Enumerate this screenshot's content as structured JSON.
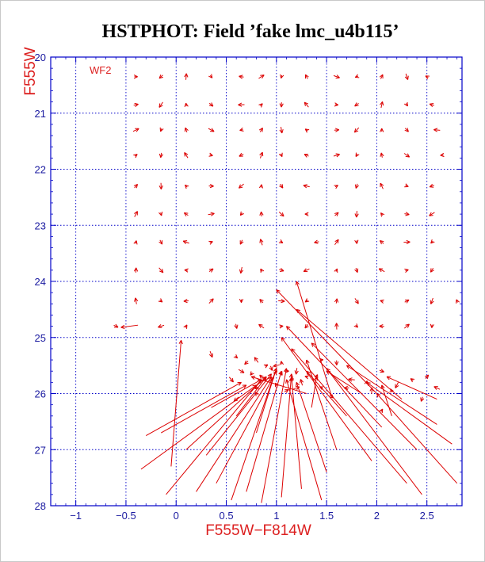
{
  "colors": {
    "frame": "#0000c8",
    "grid": "#0000c8",
    "ticks": "#1a1aa0",
    "vectors": "#dc0000",
    "labels": "#dc2020",
    "title": "#000000"
  },
  "chart_data": {
    "type": "vector-field",
    "title": "HSTPHOT: Field ’fake lmc_u4b115’",
    "xlabel": "F555W−F814W",
    "ylabel": "F555W",
    "field_label": "WF2",
    "xlim": [
      -1.25,
      2.85
    ],
    "ylim": [
      28,
      20
    ],
    "y_inverted": true,
    "grid": true,
    "x_ticks": [
      -1,
      -0.5,
      0,
      0.5,
      1,
      1.5,
      2,
      2.5
    ],
    "x_tick_labels": [
      "−1",
      "−0.5",
      "0",
      "0.5",
      "1",
      "1.5",
      "2",
      "2.5"
    ],
    "y_ticks": [
      20,
      21,
      22,
      23,
      24,
      25,
      26,
      27,
      28
    ],
    "y_tick_labels": [
      "20",
      "21",
      "22",
      "23",
      "24",
      "25",
      "26",
      "27",
      "28"
    ],
    "vector_rows": [
      {
        "y": 20.35,
        "x": [
          -0.4,
          -0.15,
          0.1,
          0.35,
          0.65,
          0.85,
          1.05,
          1.3,
          1.6,
          1.8,
          2.05,
          2.3,
          2.5
        ]
      },
      {
        "y": 20.85,
        "x": [
          -0.4,
          -0.15,
          0.1,
          0.35,
          0.65,
          0.85,
          1.05,
          1.3,
          1.6,
          1.8,
          2.05,
          2.3,
          2.55
        ]
      },
      {
        "y": 21.3,
        "x": [
          -0.4,
          -0.15,
          0.1,
          0.35,
          0.65,
          0.85,
          1.05,
          1.3,
          1.6,
          1.8,
          2.05,
          2.3,
          2.6
        ]
      },
      {
        "y": 21.75,
        "x": [
          -0.4,
          -0.15,
          0.1,
          0.35,
          0.65,
          0.85,
          1.05,
          1.3,
          1.6,
          1.8,
          2.05,
          2.3,
          2.65
        ]
      },
      {
        "y": 22.3,
        "x": [
          -0.4,
          -0.15,
          0.1,
          0.35,
          0.65,
          0.85,
          1.05,
          1.3,
          1.6,
          1.8,
          2.05,
          2.3,
          2.55
        ]
      },
      {
        "y": 22.8,
        "x": [
          -0.4,
          -0.15,
          0.1,
          0.35,
          0.65,
          0.85,
          1.05,
          1.3,
          1.6,
          1.8,
          2.05,
          2.3,
          2.55
        ]
      },
      {
        "y": 23.3,
        "x": [
          -0.4,
          -0.15,
          0.1,
          0.35,
          0.65,
          0.85,
          1.05,
          1.4,
          1.6,
          1.8,
          2.05,
          2.3,
          2.55
        ]
      },
      {
        "y": 23.8,
        "x": [
          -0.4,
          -0.15,
          0.1,
          0.35,
          0.65,
          0.85,
          1.05,
          1.3,
          1.6,
          1.8,
          2.05,
          2.3,
          2.55
        ]
      },
      {
        "y": 24.35,
        "x": [
          -0.4,
          -0.15,
          0.1,
          0.35,
          0.65,
          0.85,
          1.05,
          1.3,
          1.6,
          1.8,
          2.05,
          2.3,
          2.55,
          2.8
        ]
      },
      {
        "y": 24.8,
        "x": [
          -0.6,
          -0.15,
          0.1,
          0.6,
          0.85,
          1.05,
          1.3,
          1.6,
          1.8,
          2.05,
          2.3,
          2.55
        ]
      }
    ],
    "long_vectors": [
      {
        "x0": -0.05,
        "y0": 27.3,
        "x1": 0.05,
        "y1": 25.05
      },
      {
        "x0": -0.3,
        "y0": 26.75,
        "x1": 0.65,
        "y1": 25.8
      },
      {
        "x0": -0.15,
        "y0": 26.7,
        "x1": 0.7,
        "y1": 25.85
      },
      {
        "x0": -0.35,
        "y0": 27.35,
        "x1": 0.8,
        "y1": 25.85
      },
      {
        "x0": 0.1,
        "y0": 27.0,
        "x1": 0.9,
        "y1": 25.7
      },
      {
        "x0": 0.3,
        "y0": 27.1,
        "x1": 0.95,
        "y1": 25.65
      },
      {
        "x0": -0.1,
        "y0": 27.8,
        "x1": 0.85,
        "y1": 25.75
      },
      {
        "x0": 0.2,
        "y0": 27.75,
        "x1": 0.95,
        "y1": 25.7
      },
      {
        "x0": 0.4,
        "y0": 27.6,
        "x1": 1.0,
        "y1": 25.6
      },
      {
        "x0": 0.55,
        "y0": 27.9,
        "x1": 1.0,
        "y1": 25.55
      },
      {
        "x0": 0.7,
        "y0": 27.75,
        "x1": 1.05,
        "y1": 25.6
      },
      {
        "x0": 0.85,
        "y0": 27.95,
        "x1": 1.1,
        "y1": 25.55
      },
      {
        "x0": 1.05,
        "y0": 27.85,
        "x1": 1.15,
        "y1": 25.65
      },
      {
        "x0": 1.25,
        "y0": 27.7,
        "x1": 1.15,
        "y1": 25.7
      },
      {
        "x0": 1.45,
        "y0": 27.9,
        "x1": 1.1,
        "y1": 25.75
      },
      {
        "x0": 1.5,
        "y0": 27.4,
        "x1": 1.2,
        "y1": 25.8
      },
      {
        "x0": 0.8,
        "y0": 26.7,
        "x1": 1.0,
        "y1": 25.55
      },
      {
        "x0": 0.6,
        "y0": 26.4,
        "x1": 0.9,
        "y1": 25.7
      },
      {
        "x0": 1.3,
        "y0": 26.0,
        "x1": 0.75,
        "y1": 25.7
      },
      {
        "x0": 0.35,
        "y0": 26.25,
        "x1": 0.85,
        "y1": 25.75
      },
      {
        "x0": 1.55,
        "y0": 26.05,
        "x1": 1.2,
        "y1": 24.0
      },
      {
        "x0": 2.0,
        "y0": 26.0,
        "x1": 1.0,
        "y1": 24.15
      },
      {
        "x0": 2.25,
        "y0": 26.1,
        "x1": 1.2,
        "y1": 24.5
      },
      {
        "x0": 2.05,
        "y0": 26.6,
        "x1": 1.1,
        "y1": 24.8
      },
      {
        "x0": 1.95,
        "y0": 27.2,
        "x1": 1.05,
        "y1": 25.0
      },
      {
        "x0": 2.4,
        "y0": 27.0,
        "x1": 1.35,
        "y1": 25.1
      },
      {
        "x0": 2.3,
        "y0": 27.6,
        "x1": 1.15,
        "y1": 25.2
      },
      {
        "x0": 2.45,
        "y0": 27.8,
        "x1": 1.5,
        "y1": 25.55
      },
      {
        "x0": 2.6,
        "y0": 26.55,
        "x1": 1.7,
        "y1": 25.5
      },
      {
        "x0": 2.75,
        "y0": 26.9,
        "x1": 1.9,
        "y1": 25.8
      },
      {
        "x0": 2.8,
        "y0": 27.6,
        "x1": 2.0,
        "y1": 26.0
      },
      {
        "x0": 2.6,
        "y0": 26.1,
        "x1": 2.1,
        "y1": 25.7
      },
      {
        "x0": 1.7,
        "y0": 26.4,
        "x1": 1.3,
        "y1": 25.6
      },
      {
        "x0": 1.85,
        "y0": 26.0,
        "x1": 1.5,
        "y1": 25.6
      },
      {
        "x0": 1.6,
        "y0": 27.0,
        "x1": 1.3,
        "y1": 25.4
      },
      {
        "x0": 2.15,
        "y0": 26.4,
        "x1": 2.05,
        "y1": 25.85
      },
      {
        "x0": 1.35,
        "y0": 26.25,
        "x1": 1.4,
        "y1": 25.7
      }
    ],
    "cluster_points": [
      [
        0.6,
        25.35
      ],
      [
        0.7,
        25.45
      ],
      [
        0.8,
        25.4
      ],
      [
        0.9,
        25.5
      ],
      [
        0.95,
        25.55
      ],
      [
        1.0,
        25.5
      ],
      [
        1.05,
        25.45
      ],
      [
        1.1,
        25.6
      ],
      [
        1.2,
        25.6
      ],
      [
        1.3,
        25.7
      ],
      [
        1.4,
        25.7
      ],
      [
        0.65,
        25.6
      ],
      [
        0.75,
        25.65
      ],
      [
        0.85,
        25.7
      ],
      [
        0.95,
        25.75
      ],
      [
        1.05,
        25.65
      ],
      [
        1.15,
        25.75
      ],
      [
        1.25,
        25.8
      ],
      [
        1.45,
        25.4
      ],
      [
        1.6,
        25.45
      ],
      [
        1.75,
        25.75
      ],
      [
        1.9,
        25.8
      ],
      [
        2.05,
        25.6
      ],
      [
        2.2,
        25.85
      ],
      [
        2.35,
        25.75
      ],
      [
        2.5,
        25.7
      ],
      [
        0.55,
        25.75
      ],
      [
        0.8,
        25.9
      ],
      [
        1.0,
        25.85
      ],
      [
        1.2,
        25.9
      ],
      [
        1.45,
        25.9
      ],
      [
        1.7,
        25.9
      ],
      [
        1.95,
        25.95
      ],
      [
        2.15,
        25.95
      ],
      [
        2.45,
        26.1
      ],
      [
        2.6,
        25.9
      ],
      [
        2.05,
        26.3
      ],
      [
        1.55,
        26.05
      ],
      [
        0.6,
        26.1
      ],
      [
        0.8,
        26.0
      ],
      [
        1.1,
        25.95
      ],
      [
        0.35,
        25.3
      ]
    ]
  }
}
